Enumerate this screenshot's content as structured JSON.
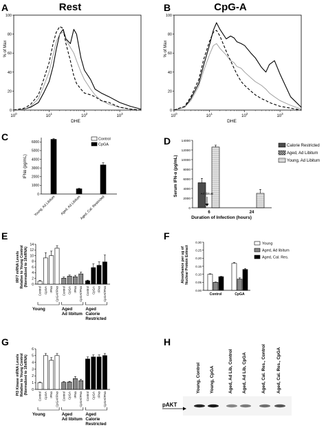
{
  "panels": {
    "A": {
      "letter": "A",
      "title": "Rest",
      "ylabel": "% of Max",
      "xlabel": "DHE",
      "yticks": [
        "0",
        "20",
        "40",
        "60",
        "80",
        "100"
      ],
      "xticks": [
        "10^0",
        "10^1",
        "10^2",
        "10^3"
      ]
    },
    "B": {
      "letter": "B",
      "title": "CpG-A",
      "ylabel": "% of Max",
      "xlabel": "DHE",
      "yticks": [
        "0",
        "20",
        "40",
        "60",
        "80",
        "100"
      ],
      "xticks": [
        "10^0",
        "10^1",
        "10^2",
        "10^3"
      ]
    },
    "C": {
      "letter": "C",
      "ylabel": "IFNα (pg/mL)",
      "yticks": [
        "0",
        "1000",
        "2000",
        "3000",
        "4000",
        "5000",
        "6000"
      ],
      "categories": [
        "Young, Ad Libitum",
        "Aged, Ad Libitum",
        "Aged, Cal. Restricted"
      ],
      "legend": [
        "Control",
        "CpGA"
      ]
    },
    "D": {
      "letter": "D",
      "ylabel": "Serum IFN-α (pg/mL)",
      "xlabel": "Duration of Infection (hours)",
      "yticks": [
        "0",
        "2000",
        "4000",
        "6000",
        "8000",
        "10000",
        "12000",
        "14000"
      ],
      "xticks": [
        "6",
        "24"
      ],
      "annotation": "Ad libitum",
      "legend": [
        "Calorie Restricted",
        "Aged, Ad Libitum",
        "Young, Ad Libitum"
      ]
    },
    "E": {
      "letter": "E",
      "ylabel": [
        "IRF7 mRNA Levels",
        "Relative to Young Control",
        "(Normalized to 18sRNA)"
      ],
      "yticks": [
        "0",
        "2",
        "4",
        "6",
        "8",
        "10",
        "12",
        "14"
      ],
      "bar_labels": [
        "Control",
        "CpGA",
        "IFNα",
        "CpGA/IFNα",
        "Control",
        "CpGA",
        "IFNα",
        "CpGA/IFNα",
        "Control",
        "CpGA",
        "IFNα",
        "CpGA/IFNα"
      ],
      "groups": [
        "Young",
        [
          "Aged",
          "Ad libitum"
        ],
        [
          "Aged",
          "Calorie",
          "Restricted"
        ]
      ]
    },
    "F": {
      "letter": "F",
      "ylabel": [
        "Absorbance per ug of",
        "Nuclear Protein Extract"
      ],
      "yticks": [
        "0.00",
        "0.05",
        "0.10",
        "0.15",
        "0.20",
        "0.25",
        "0.30"
      ],
      "categories": [
        "Control",
        "CpGA"
      ],
      "legend": [
        "Young",
        "Aged, Ad libitum",
        "Aged, Cal. Res."
      ]
    },
    "G": {
      "letter": "G",
      "ylabel": [
        "PI3 Kinase mRNA Levels",
        "Relative to Young Control",
        "(Normalized to 18sRNA)"
      ],
      "yticks": [
        "0",
        "1",
        "2",
        "3",
        "4",
        "5",
        "6"
      ],
      "bar_labels": [
        "Control",
        "CpGA",
        "IFNα",
        "CpGA/IFNα",
        "Control",
        "CpGA",
        "IFNα",
        "CpGA/IFNα",
        "Control",
        "CpGA",
        "IFNα",
        "CpGA/IFNα"
      ],
      "groups": [
        "Young",
        [
          "Aged",
          "Ad libitum"
        ],
        [
          "Aged",
          "Calorie",
          "Restricted"
        ]
      ]
    },
    "H": {
      "letter": "H",
      "lanes": [
        "Young, Control",
        "Young, CpGA",
        "Aged, Ad Lib, Control",
        "Aged, Ad Lib, CpGA",
        "Aged, Cal. Res., Control",
        "Aged, Cal. Res., CpGA"
      ],
      "band_label": "pAKT"
    }
  },
  "chart_data": [
    {
      "panel": "A",
      "type": "line",
      "title": "Rest",
      "xlabel": "DHE",
      "ylabel": "% of Max",
      "xscale": "log",
      "xlim": [
        1,
        4000
      ],
      "ylim": [
        0,
        100
      ],
      "series": [
        {
          "style": "solid",
          "x": [
            1,
            2,
            3,
            5,
            7,
            10,
            13,
            16,
            20,
            25,
            30,
            40,
            50,
            60,
            80,
            100,
            150,
            200,
            300,
            500,
            1000,
            2000,
            4000
          ],
          "y": [
            0,
            1,
            3,
            8,
            18,
            30,
            46,
            64,
            80,
            85,
            75,
            70,
            85,
            80,
            55,
            42,
            32,
            22,
            18,
            14,
            8,
            4,
            1
          ]
        },
        {
          "style": "dotted",
          "x": [
            1,
            2,
            3,
            5,
            7,
            10,
            13,
            16,
            20,
            25,
            30,
            40,
            50,
            60,
            80,
            100,
            150,
            200,
            300,
            500,
            1000,
            2000,
            4000
          ],
          "y": [
            0,
            1,
            4,
            12,
            25,
            40,
            58,
            72,
            80,
            82,
            74,
            66,
            60,
            52,
            40,
            32,
            22,
            16,
            10,
            6,
            3,
            1,
            0
          ]
        },
        {
          "style": "dashed",
          "x": [
            1,
            2,
            3,
            5,
            7,
            10,
            13,
            16,
            20,
            25,
            30,
            40,
            50,
            60,
            80,
            100,
            150,
            200,
            300,
            500,
            1000,
            2000,
            4000
          ],
          "y": [
            0,
            2,
            6,
            16,
            32,
            50,
            70,
            82,
            88,
            86,
            70,
            52,
            36,
            28,
            22,
            18,
            16,
            14,
            10,
            8,
            3,
            1,
            0
          ]
        }
      ]
    },
    {
      "panel": "B",
      "type": "line",
      "title": "CpG-A",
      "xlabel": "DHE",
      "ylabel": "% of Max",
      "xscale": "log",
      "xlim": [
        1,
        4000
      ],
      "ylim": [
        0,
        100
      ],
      "series": [
        {
          "style": "solid",
          "x": [
            1,
            2,
            3,
            5,
            7,
            10,
            13,
            16,
            20,
            30,
            40,
            50,
            60,
            80,
            100,
            150,
            200,
            300,
            400,
            500,
            700,
            1000,
            2000,
            4000
          ],
          "y": [
            0,
            3,
            12,
            28,
            48,
            68,
            84,
            92,
            85,
            75,
            78,
            76,
            72,
            70,
            68,
            60,
            55,
            45,
            40,
            48,
            52,
            38,
            14,
            3
          ]
        },
        {
          "style": "dotted",
          "x": [
            1,
            2,
            3,
            5,
            7,
            10,
            13,
            16,
            20,
            30,
            40,
            50,
            60,
            80,
            100,
            150,
            200,
            300,
            400,
            500,
            700,
            1000,
            2000,
            4000
          ],
          "y": [
            0,
            3,
            10,
            25,
            42,
            58,
            68,
            70,
            65,
            58,
            52,
            50,
            46,
            44,
            40,
            34,
            30,
            26,
            22,
            18,
            14,
            10,
            5,
            1
          ]
        },
        {
          "style": "dashed",
          "x": [
            1,
            2,
            3,
            5,
            7,
            10,
            13,
            16,
            20,
            30,
            40,
            50,
            60,
            80,
            100,
            150,
            200,
            300,
            400,
            500,
            700,
            1000,
            2000,
            4000
          ],
          "y": [
            0,
            4,
            14,
            32,
            54,
            72,
            82,
            84,
            78,
            62,
            52,
            44,
            38,
            30,
            26,
            20,
            16,
            12,
            10,
            8,
            6,
            4,
            2,
            0
          ]
        }
      ]
    },
    {
      "panel": "C",
      "type": "bar",
      "ylabel": "IFNα (pg/mL)",
      "ylim": [
        0,
        6500
      ],
      "categories": [
        "Young, Ad Libitum",
        "Aged, Ad Libitum",
        "Aged, Cal. Restricted"
      ],
      "series": [
        {
          "name": "Control",
          "values": [
            0,
            0,
            0
          ]
        },
        {
          "name": "CpGA",
          "values": [
            6300,
            600,
            3350
          ]
        }
      ],
      "errors": [
        80,
        60,
        250
      ]
    },
    {
      "panel": "D",
      "type": "bar",
      "ylabel": "Serum IFN-α (pg/mL)",
      "xlabel": "Duration of Infection (hours)",
      "ylim": [
        0,
        14000
      ],
      "categories": [
        "6",
        "24"
      ],
      "series": [
        {
          "name": "Calorie Restricted",
          "values": [
            5200,
            0
          ]
        },
        {
          "name": "Aged, Ad Libitum",
          "values": [
            0,
            0
          ]
        },
        {
          "name": "Young, Ad Libitum",
          "values": [
            12600,
            3000
          ]
        }
      ],
      "errors": [
        [
          900,
          0
        ],
        [
          0,
          0
        ],
        [
          400,
          800
        ]
      ]
    },
    {
      "panel": "E",
      "type": "bar",
      "ylim": [
        0,
        14
      ],
      "categories": [
        "Control",
        "CpGA",
        "IFNα",
        "CpGA/IFNα",
        "Control",
        "CpGA",
        "IFNα",
        "CpGA/IFNα",
        "Control",
        "CpGA",
        "IFNα",
        "CpGA/IFNα"
      ],
      "values": [
        1.0,
        9.2,
        10.0,
        12.6,
        2.1,
        2.8,
        2.6,
        3.6,
        1.2,
        5.8,
        6.6,
        7.8
      ],
      "errors": [
        0.3,
        1.8,
        1.6,
        0.9,
        0.4,
        0.4,
        0.5,
        0.6,
        0.2,
        1.3,
        1.2,
        2.4
      ],
      "groups": [
        "Young",
        "Aged Ad libitum",
        "Aged Calorie Restricted"
      ]
    },
    {
      "panel": "F",
      "type": "bar",
      "ylim": [
        0,
        0.3
      ],
      "categories": [
        "Control",
        "CpGA"
      ],
      "series": [
        {
          "name": "Young",
          "values": [
            0.1,
            0.168
          ]
        },
        {
          "name": "Aged, Ad libitum",
          "values": [
            0.05,
            0.07
          ]
        },
        {
          "name": "Aged, Cal. Res.",
          "values": [
            0.085,
            0.13
          ]
        }
      ],
      "errors": [
        [
          0.003,
          0.005
        ],
        [
          0.002,
          0.008
        ],
        [
          0.002,
          0.006
        ]
      ]
    },
    {
      "panel": "G",
      "type": "bar",
      "ylim": [
        0,
        6
      ],
      "categories": [
        "Control",
        "CpGA",
        "IFNα",
        "CpGA/IFNα",
        "Control",
        "CpGA",
        "IFNα",
        "CpGA/IFNα",
        "Control",
        "CpGA",
        "IFNα",
        "CpGA/IFNα"
      ],
      "values": [
        1.0,
        5.0,
        4.3,
        5.0,
        1.05,
        1.1,
        1.6,
        1.3,
        4.5,
        4.8,
        4.8,
        5.0
      ],
      "errors": [
        0.1,
        0.3,
        0.4,
        0.3,
        0.1,
        0.1,
        0.3,
        0.2,
        0.3,
        0.3,
        0.3,
        0.3
      ],
      "groups": [
        "Young",
        "Aged Ad libitum",
        "Aged Calorie Restricted"
      ]
    }
  ]
}
